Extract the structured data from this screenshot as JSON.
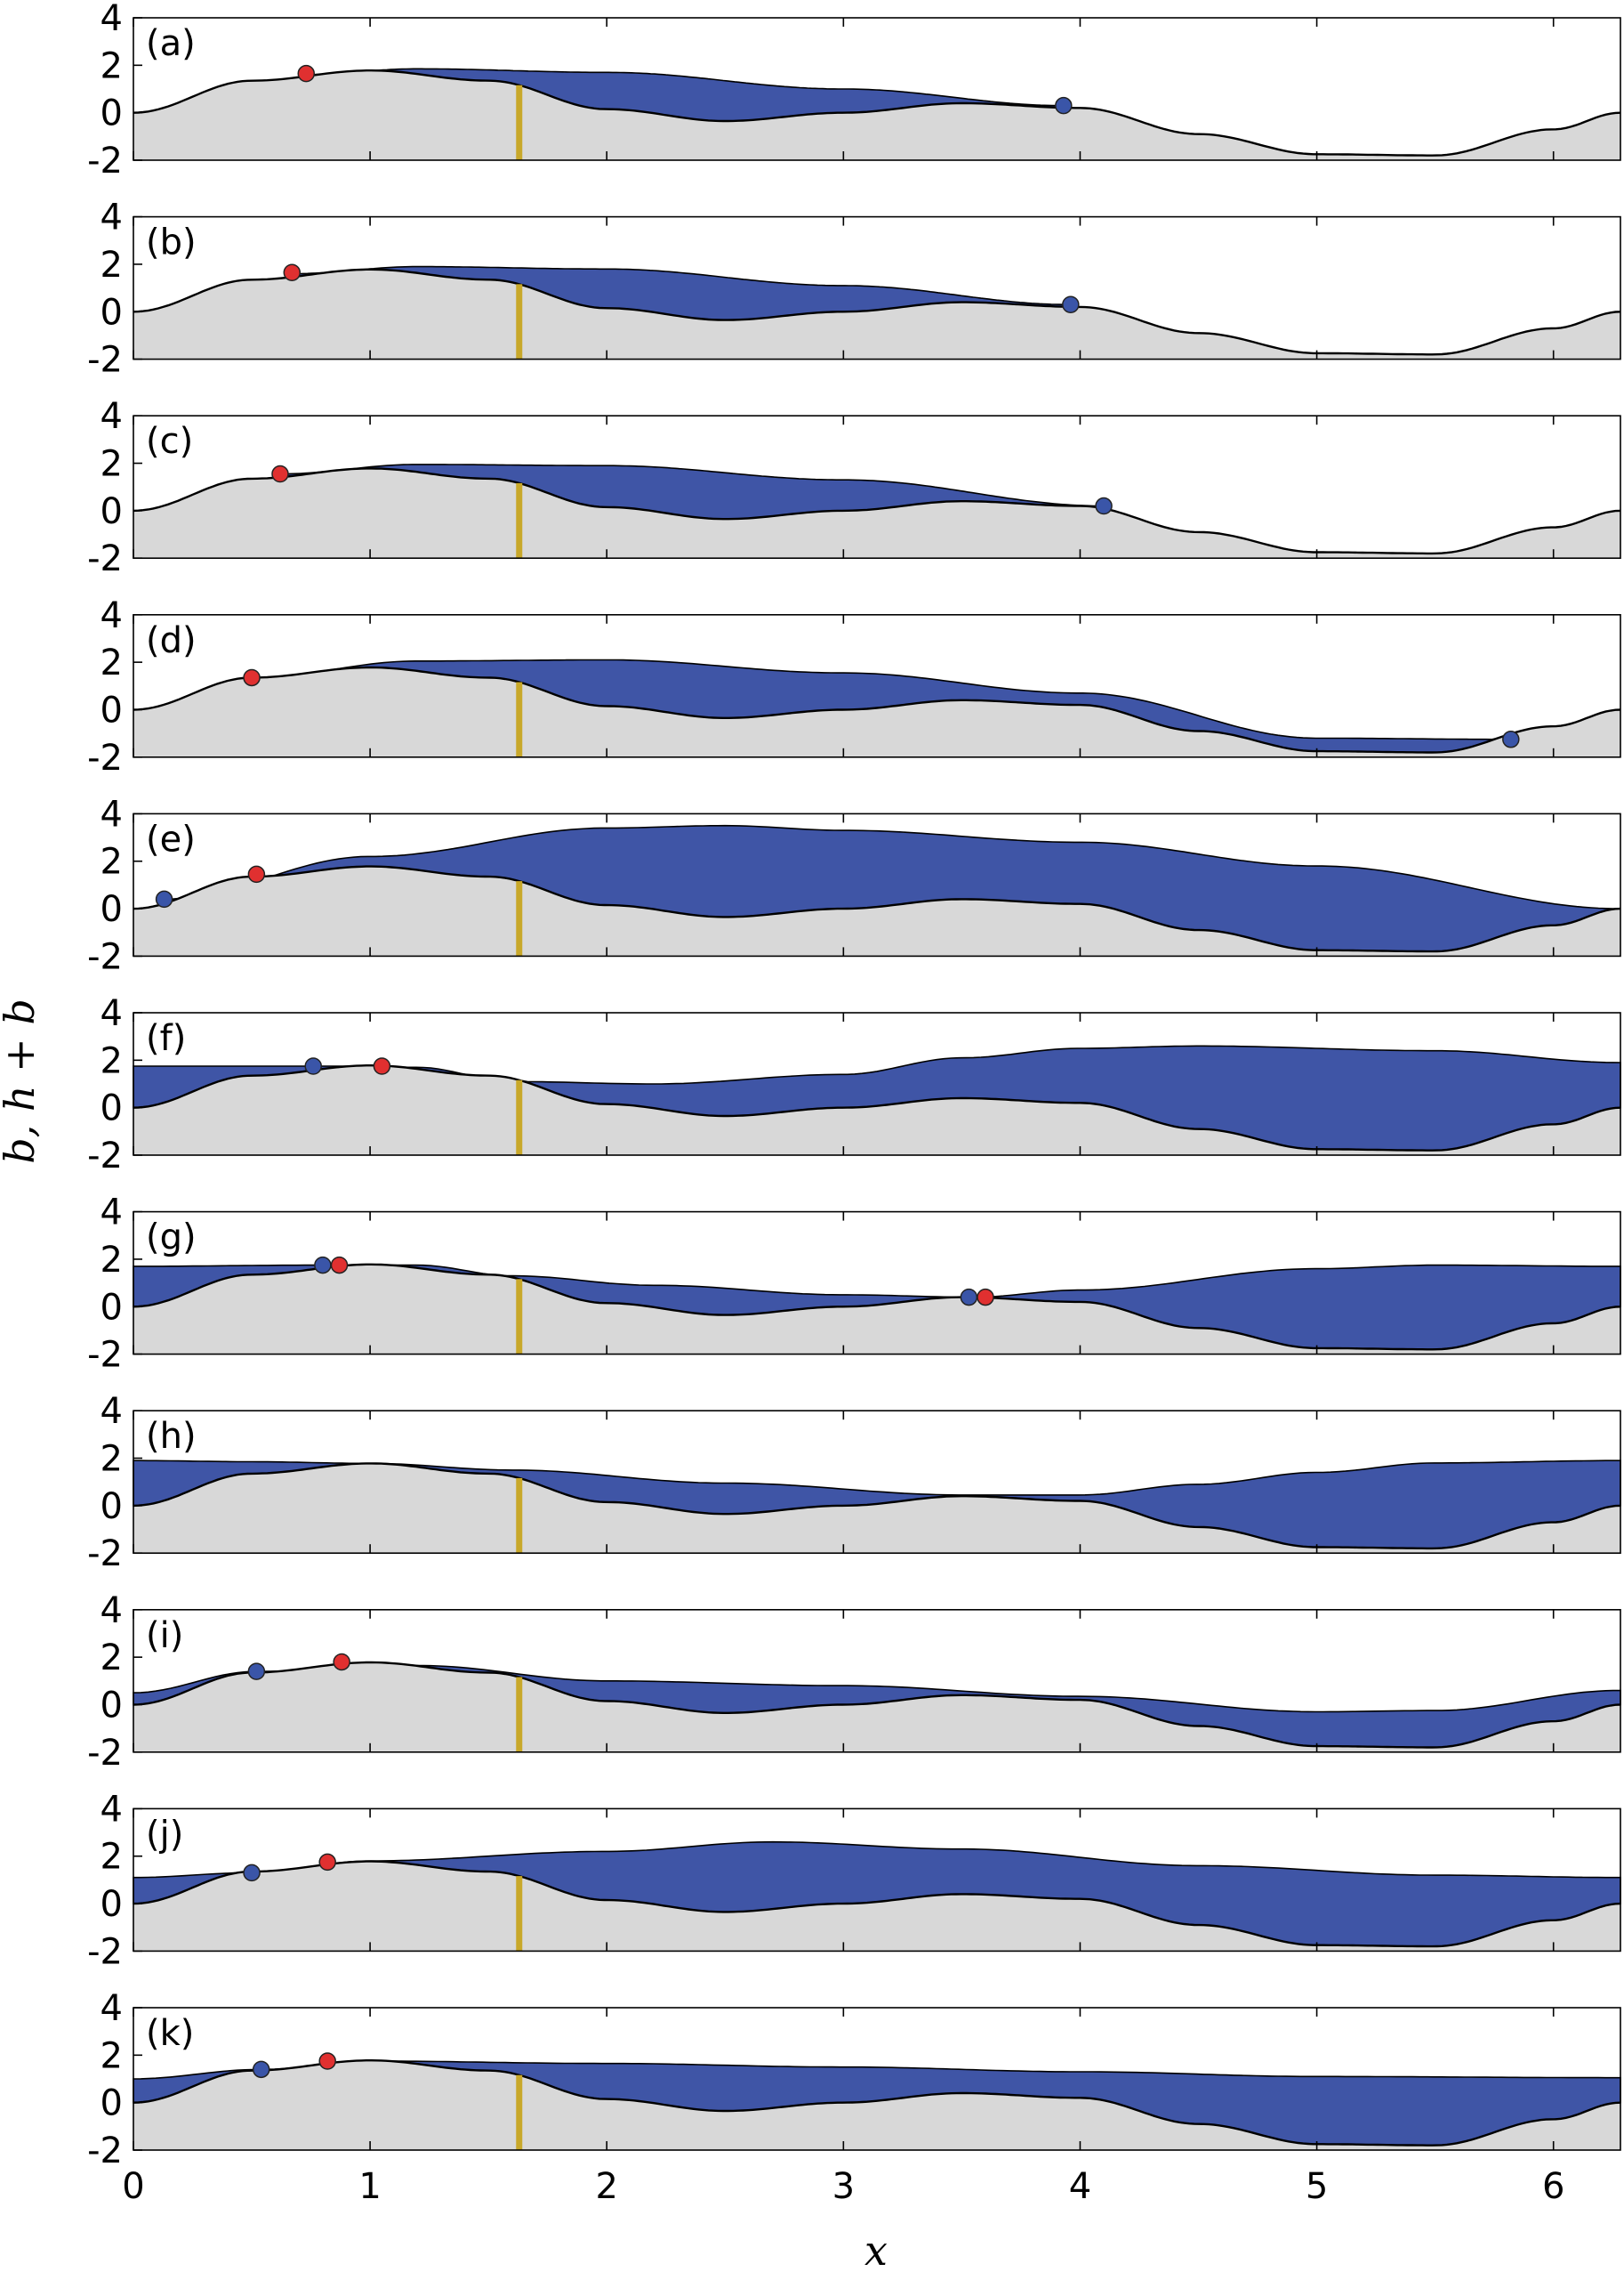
{
  "figure": {
    "ylabel": "b, h + b",
    "xlabel": "x"
  },
  "chart_data": {
    "type": "area",
    "xlim": [
      0,
      6.283
    ],
    "ylim": [
      -2,
      4
    ],
    "x_ticks": [
      0,
      1,
      2,
      3,
      4,
      5,
      6
    ],
    "x_tick_labels": [
      "0",
      "1",
      "2",
      "3",
      "4",
      "5",
      "6"
    ],
    "y_ticks": [
      4,
      2,
      0,
      -2
    ],
    "y_tick_labels": [
      "4",
      "2",
      "0",
      "-2"
    ],
    "grid": false,
    "marker_x": 1.63,
    "colors": {
      "water": "#3f55a6",
      "ground": "#d8d8d8",
      "marker": "#c8a82a",
      "red_point": "#e03030",
      "blue_point": "#3a55a8"
    },
    "bed": {
      "x": [
        0,
        0.5,
        1.0,
        1.5,
        2.0,
        2.5,
        3.0,
        3.5,
        4.0,
        4.5,
        5.0,
        5.5,
        6.0,
        6.283
      ],
      "y": [
        0.0,
        1.35,
        1.78,
        1.35,
        0.15,
        -0.35,
        0.0,
        0.4,
        0.2,
        -0.9,
        -1.75,
        -1.8,
        -0.7,
        0.0
      ]
    },
    "panels": [
      {
        "label": "(a)",
        "surface_x": [
          0.7,
          1.2,
          2.0,
          3.0,
          3.93
        ],
        "surface_y": [
          1.6,
          1.85,
          1.7,
          1.0,
          0.3
        ],
        "red": [
          0.73,
          1.65
        ],
        "blue": [
          3.93,
          0.3
        ]
      },
      {
        "label": "(b)",
        "surface_x": [
          0.67,
          1.2,
          2.0,
          3.0,
          3.96
        ],
        "surface_y": [
          1.6,
          1.9,
          1.8,
          1.1,
          0.3
        ],
        "red": [
          0.67,
          1.65
        ],
        "blue": [
          3.96,
          0.3
        ]
      },
      {
        "label": "(c)",
        "surface_x": [
          0.62,
          1.2,
          2.0,
          3.0,
          4.1
        ],
        "surface_y": [
          1.55,
          1.95,
          1.9,
          1.3,
          0.2
        ],
        "red": [
          0.62,
          1.55
        ],
        "blue": [
          4.1,
          0.2
        ]
      },
      {
        "label": "(d)",
        "surface_x": [
          0.5,
          1.2,
          2.0,
          3.0,
          4.0,
          5.0,
          5.82
        ],
        "surface_y": [
          1.35,
          2.05,
          2.1,
          1.55,
          0.7,
          -1.2,
          -1.25
        ],
        "red": [
          0.5,
          1.35
        ],
        "blue": [
          5.82,
          -1.25
        ]
      },
      {
        "label": "(e)",
        "surface_x": [
          0.13,
          1.0,
          2.0,
          2.5,
          3.0,
          4.0,
          5.0,
          6.283
        ],
        "surface_y": [
          0.4,
          2.2,
          3.4,
          3.5,
          3.3,
          2.8,
          1.8,
          0.0
        ],
        "red": [
          0.52,
          1.45
        ],
        "blue": [
          0.13,
          0.4
        ]
      },
      {
        "label": "(f)",
        "surface_x": [
          0.0,
          0.8,
          1.2,
          1.6,
          2.2,
          3.0,
          3.5,
          4.0,
          4.5,
          5.5,
          6.283
        ],
        "surface_y": [
          1.75,
          1.75,
          1.7,
          1.1,
          1.0,
          1.4,
          2.1,
          2.5,
          2.6,
          2.4,
          1.9
        ],
        "red": [
          1.05,
          1.75
        ],
        "blue": [
          0.76,
          1.75
        ]
      },
      {
        "label": "(g)",
        "surface_x": [
          0.0,
          0.8,
          1.2,
          1.6,
          2.2,
          3.0,
          3.55,
          4.0,
          5.0,
          5.5,
          6.283
        ],
        "surface_y": [
          1.7,
          1.75,
          1.75,
          1.3,
          0.9,
          0.5,
          0.4,
          0.7,
          1.6,
          1.75,
          1.7
        ],
        "red": [
          0.87,
          1.75
        ],
        "blue": [
          0.8,
          1.75
        ],
        "red2": [
          3.6,
          0.4
        ],
        "blue2": [
          3.53,
          0.4
        ]
      },
      {
        "label": "(h)",
        "surface_x": [
          0.0,
          0.5,
          1.0,
          1.6,
          2.5,
          3.5,
          4.0,
          4.5,
          5.0,
          5.5,
          6.283
        ],
        "surface_y": [
          1.9,
          1.85,
          1.78,
          1.5,
          0.95,
          0.45,
          0.45,
          0.9,
          1.4,
          1.8,
          1.9
        ],
        "red": null,
        "blue": null
      },
      {
        "label": "(i)",
        "surface_x": [
          0.0,
          0.52,
          1.2,
          2.0,
          3.0,
          4.0,
          5.0,
          5.5,
          6.283
        ],
        "surface_y": [
          0.5,
          1.4,
          1.65,
          1.0,
          0.8,
          0.35,
          -0.3,
          -0.25,
          0.6
        ],
        "red": [
          0.88,
          1.8
        ],
        "blue": [
          0.52,
          1.4
        ]
      },
      {
        "label": "(j)",
        "surface_x": [
          0.0,
          0.5,
          1.0,
          2.0,
          2.7,
          3.5,
          4.5,
          5.5,
          6.283
        ],
        "surface_y": [
          1.1,
          1.3,
          1.8,
          2.2,
          2.6,
          2.3,
          1.6,
          1.2,
          1.1
        ],
        "red": [
          0.82,
          1.75
        ],
        "blue": [
          0.5,
          1.3
        ]
      },
      {
        "label": "(k)",
        "surface_x": [
          0.0,
          0.54,
          1.0,
          2.0,
          3.0,
          4.0,
          5.0,
          6.283
        ],
        "surface_y": [
          1.0,
          1.4,
          1.75,
          1.65,
          1.5,
          1.3,
          1.1,
          1.05
        ],
        "red": [
          0.82,
          1.75
        ],
        "blue": [
          0.54,
          1.4
        ]
      }
    ]
  }
}
